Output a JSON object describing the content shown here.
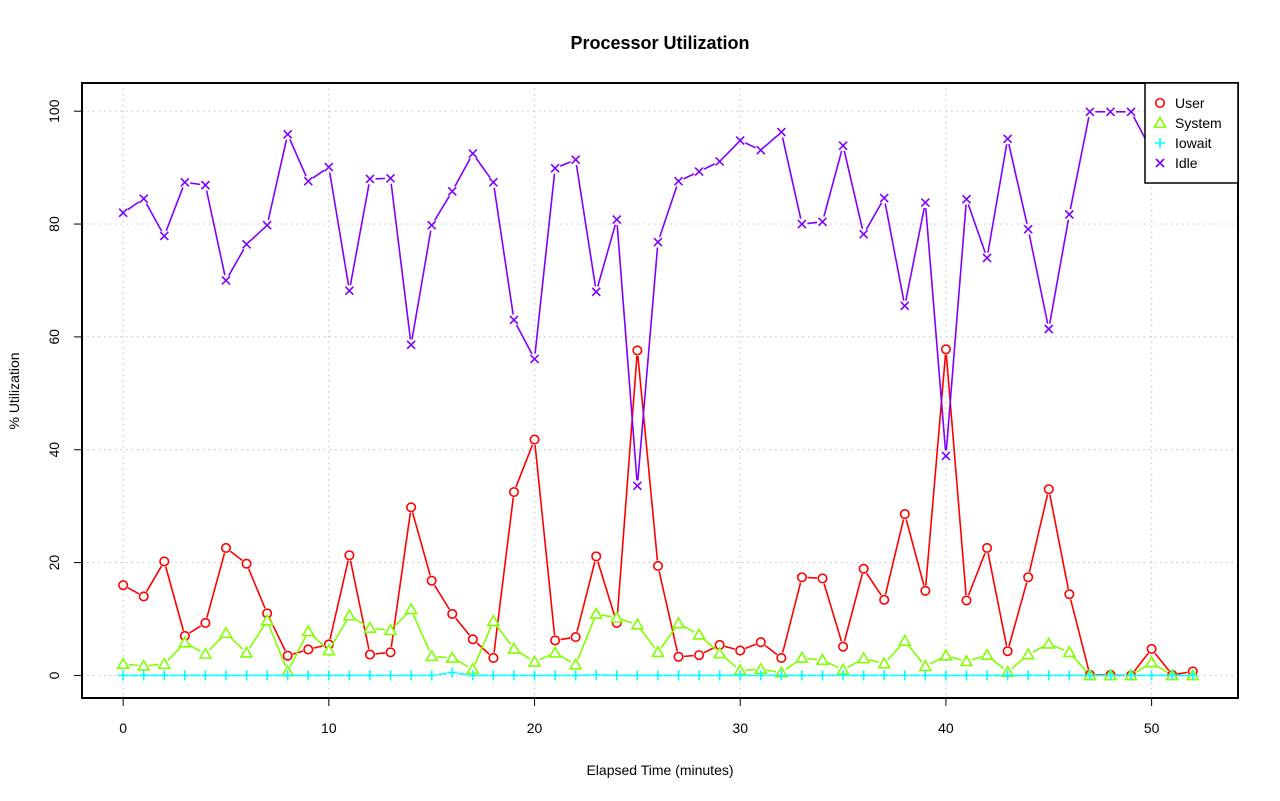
{
  "chart_data": {
    "type": "line",
    "title": "Processor Utilization",
    "xlabel": "Elapsed Time (minutes)",
    "ylabel": "% Utilization",
    "xlim": [
      -2,
      54.2
    ],
    "ylim": [
      -4,
      105
    ],
    "x_ticks": [
      0,
      10,
      20,
      30,
      40,
      50
    ],
    "y_ticks": [
      0,
      20,
      40,
      60,
      80,
      100
    ],
    "grid": true,
    "legend_position": "top-right",
    "x": [
      0,
      1,
      2,
      3,
      4,
      5,
      6,
      7,
      8,
      9,
      10,
      11,
      12,
      13,
      14,
      15,
      16,
      17,
      18,
      19,
      20,
      21,
      22,
      23,
      24,
      25,
      26,
      27,
      28,
      29,
      30,
      31,
      32,
      33,
      34,
      35,
      36,
      37,
      38,
      39,
      40,
      41,
      42,
      43,
      44,
      45,
      46,
      47,
      48,
      49,
      50,
      51,
      52
    ],
    "series": [
      {
        "name": "User",
        "color": "#ff0000",
        "marker": "circle",
        "values": [
          16.0,
          14.0,
          20.2,
          7.0,
          9.3,
          22.6,
          19.8,
          11.0,
          3.5,
          4.6,
          5.5,
          21.3,
          3.7,
          4.1,
          29.8,
          16.8,
          10.9,
          6.4,
          3.1,
          32.5,
          41.8,
          6.2,
          6.8,
          21.1,
          9.3,
          57.6,
          19.4,
          3.3,
          3.6,
          5.4,
          4.4,
          5.9,
          3.1,
          17.4,
          17.2,
          5.1,
          18.9,
          13.4,
          28.6,
          15.0,
          57.8,
          13.3,
          22.6,
          4.3,
          17.4,
          33.0,
          14.4,
          0.1,
          0.1,
          0.0,
          4.7,
          0.1,
          0.7
        ]
      },
      {
        "name": "System",
        "color": "#80ff00",
        "marker": "triangle",
        "values": [
          2.0,
          1.7,
          2.0,
          5.8,
          3.8,
          7.5,
          4.0,
          9.7,
          0.7,
          7.8,
          4.4,
          10.6,
          8.4,
          8.0,
          11.7,
          3.4,
          3.1,
          1.1,
          9.6,
          4.7,
          2.4,
          4.0,
          1.9,
          10.9,
          10.2,
          9.0,
          4.1,
          9.2,
          7.2,
          3.9,
          0.9,
          1.1,
          0.5,
          3.1,
          2.7,
          1.0,
          3.0,
          2.1,
          6.1,
          1.6,
          3.5,
          2.5,
          3.6,
          0.6,
          3.7,
          5.6,
          4.1,
          0.0,
          0.0,
          0.0,
          2.3,
          0.0,
          0.0
        ]
      },
      {
        "name": "Iowait",
        "color": "#00ffff",
        "marker": "plus",
        "values": [
          0,
          0,
          0,
          0,
          0,
          0,
          0,
          0,
          0,
          0,
          0,
          0,
          0,
          0,
          0,
          0,
          0.5,
          0,
          0,
          0,
          0,
          0,
          0,
          0.1,
          0,
          0,
          0,
          0,
          0,
          0,
          0,
          0,
          0,
          0,
          0,
          0,
          0,
          0,
          0,
          0,
          0,
          0,
          0,
          0,
          0,
          0,
          0,
          0,
          0,
          0,
          0,
          0,
          0
        ]
      },
      {
        "name": "Idle",
        "color": "#8000ff",
        "marker": "cross",
        "values": [
          82.0,
          84.5,
          77.9,
          87.4,
          86.9,
          70.0,
          76.4,
          79.8,
          95.9,
          87.6,
          90.1,
          68.2,
          88.0,
          88.1,
          58.6,
          79.8,
          85.8,
          92.5,
          87.4,
          63.0,
          56.1,
          89.9,
          91.4,
          68.0,
          80.8,
          33.6,
          76.8,
          87.6,
          89.3,
          91.1,
          94.8,
          93.1,
          96.3,
          80.0,
          80.4,
          93.9,
          78.2,
          84.6,
          65.5,
          83.8,
          38.9,
          84.4,
          74.0,
          95.1,
          79.1,
          61.4,
          81.7,
          99.9,
          99.9,
          99.9,
          93.0,
          99.9,
          99.3
        ]
      }
    ]
  }
}
